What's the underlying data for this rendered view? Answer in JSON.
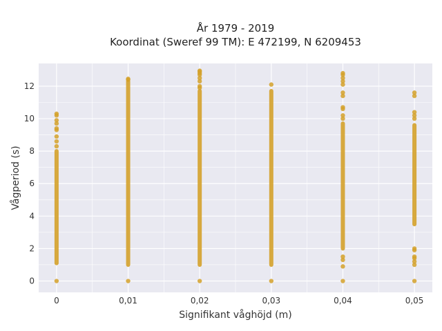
{
  "chart_data": {
    "type": "scatter",
    "title_lines": [
      "År 1979 - 2019",
      "Koordinat (Sweref 99 TM): E 472199, N 6209453"
    ],
    "xlabel": "Signifikant våghöjd (m)",
    "ylabel": "Vågperiod (s)",
    "xlim": [
      -0.0025,
      0.0525
    ],
    "ylim": [
      -0.7,
      13.4
    ],
    "x_ticks": [
      0,
      0.01,
      0.02,
      0.03,
      0.04,
      0.05
    ],
    "x_tick_labels": [
      "0",
      "0,01",
      "0,02",
      "0,03",
      "0,04",
      "0,05"
    ],
    "y_ticks": [
      0,
      2,
      4,
      6,
      8,
      10,
      12
    ],
    "y_tick_labels": [
      "0",
      "2",
      "4",
      "6",
      "8",
      "10",
      "12"
    ],
    "grid": true,
    "marker_color": "#D4A12A",
    "background_color": "#E9E9F1",
    "series": [
      {
        "x": 0,
        "band": [
          1.1,
          8.0
        ],
        "points": [
          0,
          8.3,
          8.6,
          8.9,
          9.3,
          9.4,
          9.7,
          9.9,
          10.2,
          10.3
        ]
      },
      {
        "x": 0.01,
        "band": [
          1.0,
          12.3
        ],
        "points": [
          0,
          12.4,
          12.45
        ]
      },
      {
        "x": 0.02,
        "band": [
          1.0,
          11.7
        ],
        "points": [
          0,
          11.9,
          12.0,
          12.3,
          12.5,
          12.7,
          12.8,
          12.9,
          12.95
        ]
      },
      {
        "x": 0.03,
        "band": [
          1.0,
          11.7
        ],
        "points": [
          0,
          12.1
        ]
      },
      {
        "x": 0.04,
        "band": [
          2.0,
          9.7
        ],
        "points": [
          0,
          0.9,
          1.3,
          1.5,
          10.0,
          10.2,
          10.6,
          10.7,
          11.4,
          11.6,
          12.1,
          12.3,
          12.5,
          12.7,
          12.8
        ]
      },
      {
        "x": 0.05,
        "band": [
          3.5,
          9.6
        ],
        "points": [
          0,
          1.0,
          1.2,
          1.4,
          1.5,
          1.9,
          2.0,
          10.0,
          10.2,
          10.4,
          11.4,
          11.6
        ]
      }
    ]
  }
}
